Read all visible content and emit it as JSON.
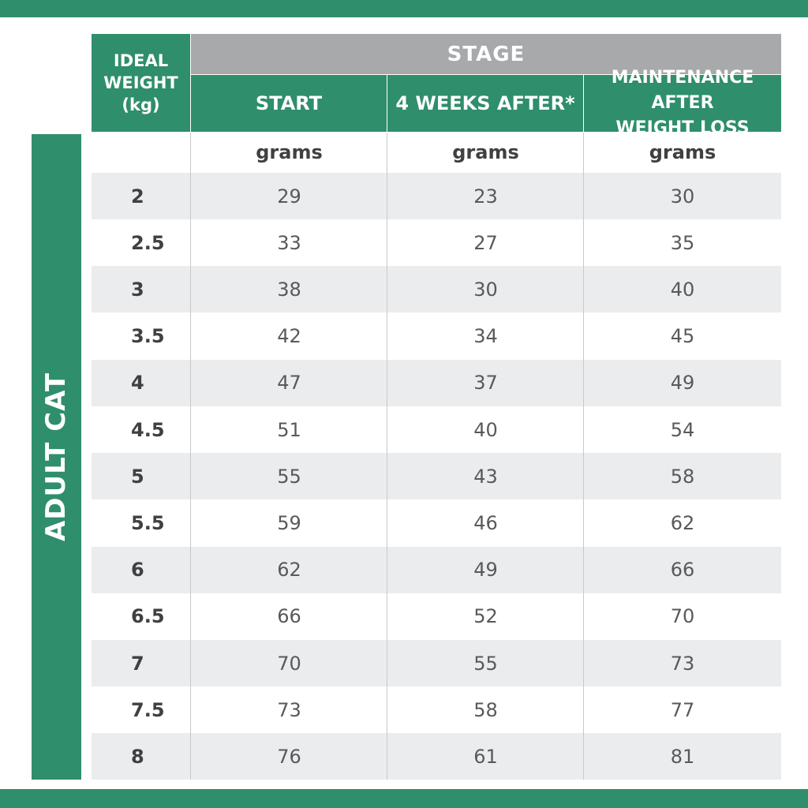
{
  "side_label": "ADULT CAT",
  "header": {
    "ideal_weight": "IDEAL\nWEIGHT\n(kg)",
    "stage": "STAGE",
    "columns": [
      "START",
      "4 WEEKS AFTER*",
      "MAINTENANCE AFTER\nWEIGHT LOSS"
    ]
  },
  "units": [
    "",
    "grams",
    "grams",
    "grams"
  ],
  "rows": [
    {
      "weight": "2",
      "start": "29",
      "four_weeks": "23",
      "maintenance": "30"
    },
    {
      "weight": "2.5",
      "start": "33",
      "four_weeks": "27",
      "maintenance": "35"
    },
    {
      "weight": "3",
      "start": "38",
      "four_weeks": "30",
      "maintenance": "40"
    },
    {
      "weight": "3.5",
      "start": "42",
      "four_weeks": "34",
      "maintenance": "45"
    },
    {
      "weight": "4",
      "start": "47",
      "four_weeks": "37",
      "maintenance": "49"
    },
    {
      "weight": "4.5",
      "start": "51",
      "four_weeks": "40",
      "maintenance": "54"
    },
    {
      "weight": "5",
      "start": "55",
      "four_weeks": "43",
      "maintenance": "58"
    },
    {
      "weight": "5.5",
      "start": "59",
      "four_weeks": "46",
      "maintenance": "62"
    },
    {
      "weight": "6",
      "start": "62",
      "four_weeks": "49",
      "maintenance": "66"
    },
    {
      "weight": "6.5",
      "start": "66",
      "four_weeks": "52",
      "maintenance": "70"
    },
    {
      "weight": "7",
      "start": "70",
      "four_weeks": "55",
      "maintenance": "73"
    },
    {
      "weight": "7.5",
      "start": "73",
      "four_weeks": "58",
      "maintenance": "77"
    },
    {
      "weight": "8",
      "start": "76",
      "four_weeks": "61",
      "maintenance": "81"
    }
  ],
  "colors": {
    "green": "#2f8e6c",
    "gray_header": "#a7a9ab",
    "row_shade": "#ebeced"
  }
}
